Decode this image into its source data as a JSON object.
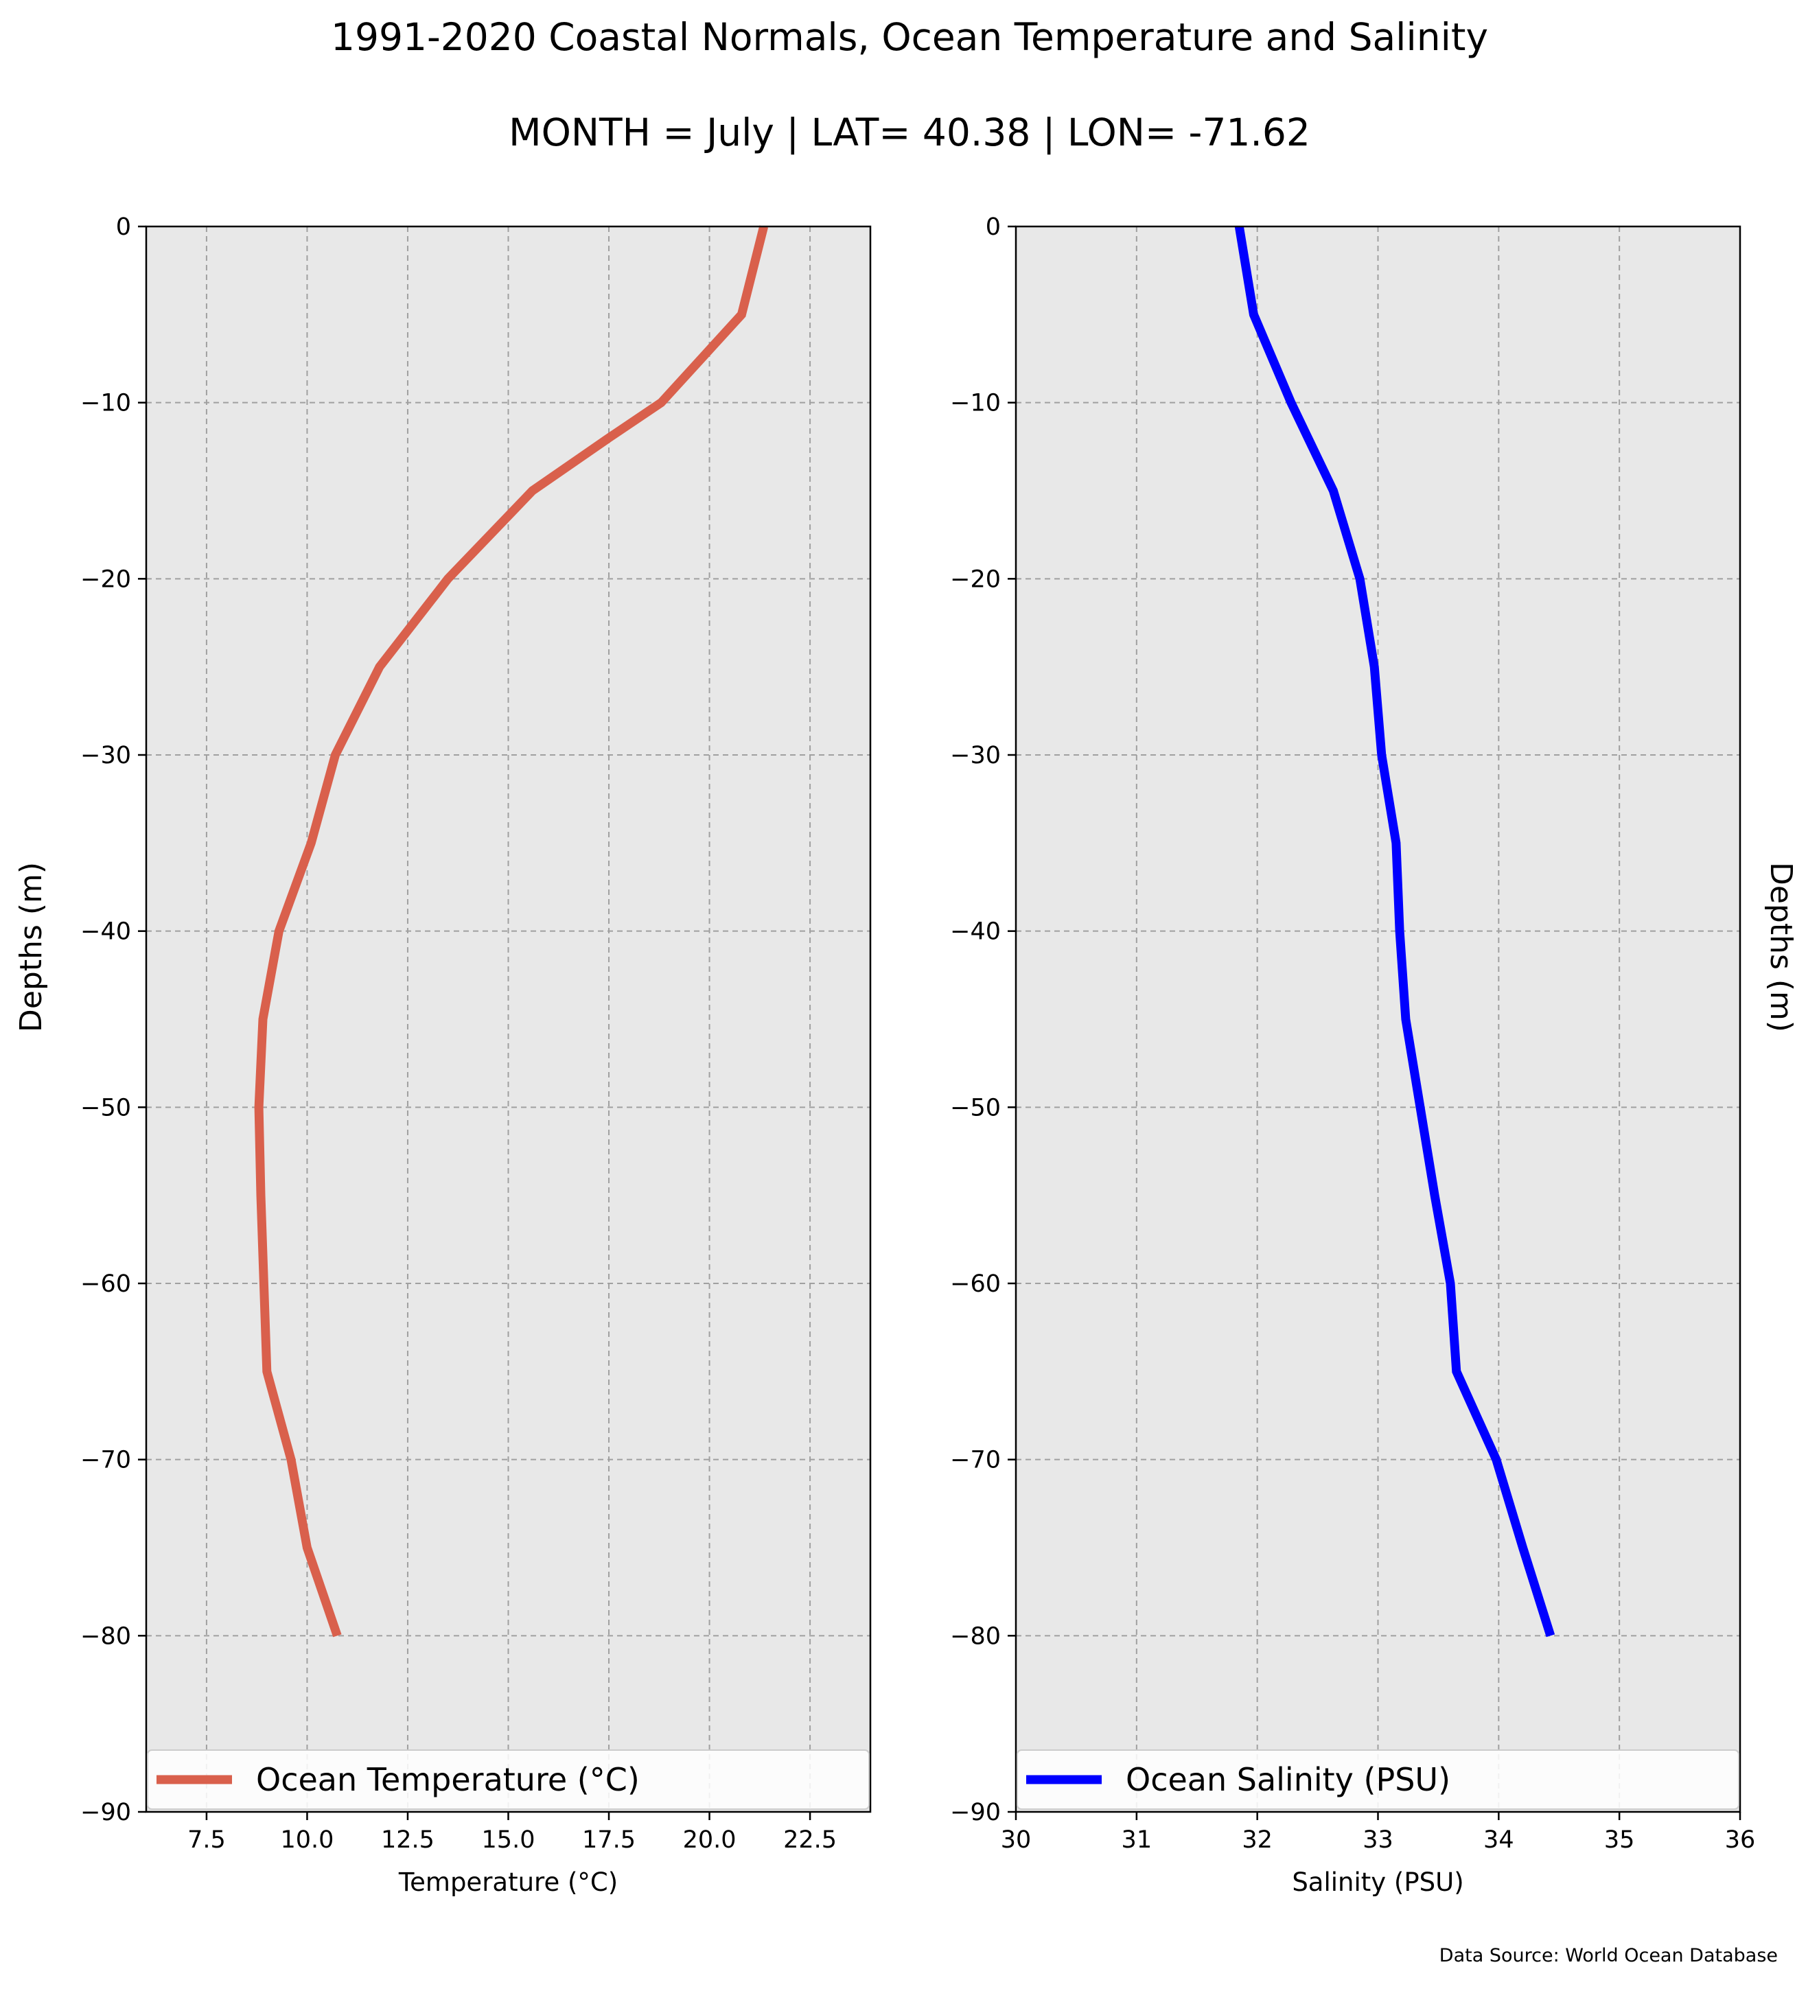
{
  "title_line1": "1991-2020 Coastal Normals, Ocean Temperature and Salinity",
  "title_line2": "MONTH = July | LAT= 40.38 | LON= -71.62",
  "source_note": "Data Source: World Ocean Database",
  "colors": {
    "temperature": "#d9604c",
    "salinity": "#0000ff",
    "plot_background": "#e8e8e8",
    "grid": "#a0a0a0"
  },
  "chart_data": [
    {
      "type": "line",
      "xlabel": "Temperature (°C)",
      "ylabel": "Depths (m)",
      "xlim": [
        6.0,
        24.0
      ],
      "ylim": [
        -90,
        0
      ],
      "x_ticks": [
        7.5,
        10.0,
        12.5,
        15.0,
        17.5,
        20.0,
        22.5
      ],
      "x_tick_labels": [
        "7.5",
        "10.0",
        "12.5",
        "15.0",
        "17.5",
        "20.0",
        "22.5"
      ],
      "y_ticks": [
        0,
        -10,
        -20,
        -30,
        -40,
        -50,
        -60,
        -70,
        -80,
        -90
      ],
      "y_tick_labels": [
        "0",
        "−10",
        "−20",
        "−30",
        "−40",
        "−50",
        "−60",
        "−70",
        "−80",
        "−90"
      ],
      "grid": true,
      "legend_position": "lower center",
      "series": [
        {
          "name": "Ocean Temperature (°C)",
          "color": "#d9604c",
          "x": [
            21.35,
            20.8,
            18.8,
            17.5,
            15.6,
            13.5,
            11.8,
            10.7,
            10.1,
            9.3,
            8.9,
            8.8,
            8.85,
            9.0,
            9.6,
            10.0,
            10.75
          ],
          "y": [
            0,
            -5,
            -10,
            -12,
            -15,
            -20,
            -25,
            -30,
            -35,
            -40,
            -45,
            -50,
            -55,
            -65,
            -70,
            -75,
            -80
          ]
        }
      ]
    },
    {
      "type": "line",
      "xlabel": "Salinity (PSU)",
      "ylabel": "Depths (m)",
      "xlim": [
        30,
        36
      ],
      "ylim": [
        -90,
        0
      ],
      "x_ticks": [
        30,
        31,
        32,
        33,
        34,
        35,
        36
      ],
      "x_tick_labels": [
        "30",
        "31",
        "32",
        "33",
        "34",
        "35",
        "36"
      ],
      "y_ticks": [
        0,
        -10,
        -20,
        -30,
        -40,
        -50,
        -60,
        -70,
        -80,
        -90
      ],
      "y_tick_labels": [
        "0",
        "−10",
        "−20",
        "−30",
        "−40",
        "−50",
        "−60",
        "−70",
        "−80",
        "−90"
      ],
      "grid": true,
      "legend_position": "lower center",
      "series": [
        {
          "name": "Ocean Salinity (PSU)",
          "color": "#0000ff",
          "x": [
            31.85,
            31.97,
            32.28,
            32.63,
            32.85,
            32.97,
            33.03,
            33.15,
            33.18,
            33.23,
            33.35,
            33.47,
            33.6,
            33.65,
            33.98,
            34.2,
            34.43
          ],
          "y": [
            0,
            -5,
            -10,
            -15,
            -20,
            -25,
            -30,
            -35,
            -40,
            -45,
            -50,
            -55,
            -60,
            -65,
            -70,
            -75,
            -80
          ]
        }
      ]
    }
  ]
}
